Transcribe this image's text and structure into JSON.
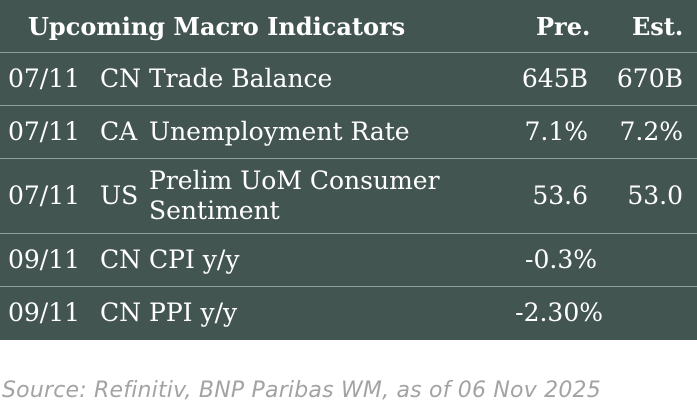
{
  "table": {
    "header": {
      "title": "Upcoming Macro Indicators",
      "pre": "Pre.",
      "est": "Est."
    },
    "rows": [
      {
        "date": "07/11",
        "country": "CN",
        "indicator": "Trade Balance",
        "pre": "645B",
        "est": "670B"
      },
      {
        "date": "07/11",
        "country": "CA",
        "indicator": "Unemployment Rate",
        "pre": "7.1%",
        "est": "7.2%"
      },
      {
        "date": "07/11",
        "country": "US",
        "indicator": "Prelim UoM Consumer Sentiment",
        "pre": "53.6",
        "est": "53.0"
      },
      {
        "date": "09/11",
        "country": "CN",
        "indicator": "CPI y/y",
        "pre": "-0.3%",
        "est": ""
      },
      {
        "date": "09/11",
        "country": "CN",
        "indicator": "PPI y/y",
        "pre": "-2.30%",
        "est": ""
      }
    ]
  },
  "source": "Source: Refinitiv, BNP Paribas WM, as of 06 Nov 2025",
  "colors": {
    "table_bg": "#435550",
    "divider": "#8fa099",
    "source_text": "#a3a3a3"
  }
}
